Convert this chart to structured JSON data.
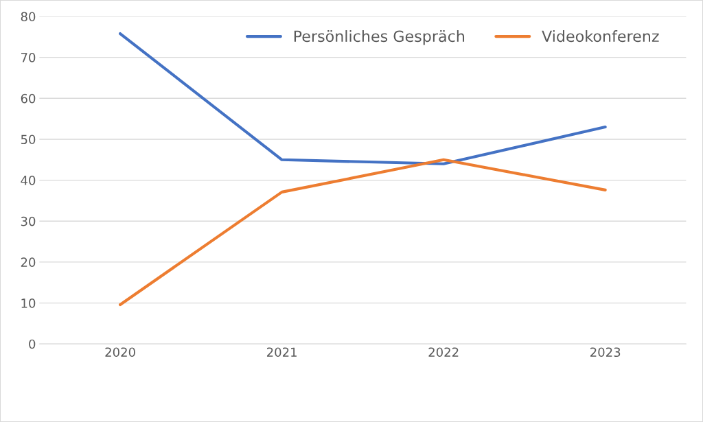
{
  "chart_data": {
    "type": "line",
    "categories": [
      "2020",
      "2021",
      "2022",
      "2023"
    ],
    "series": [
      {
        "name": "Persönliches Gespräch",
        "color": "#4472c4",
        "values": [
          75.8,
          45,
          44,
          53
        ]
      },
      {
        "name": "Videokonferenz",
        "color": "#ed7d31",
        "values": [
          9.6,
          37.1,
          45,
          37.6
        ]
      }
    ],
    "ylim": [
      0,
      80
    ],
    "yticks": [
      0,
      10,
      20,
      30,
      40,
      50,
      60,
      70,
      80
    ],
    "grid": "y",
    "legend": "top",
    "marker": "none",
    "line_style": "solid"
  }
}
